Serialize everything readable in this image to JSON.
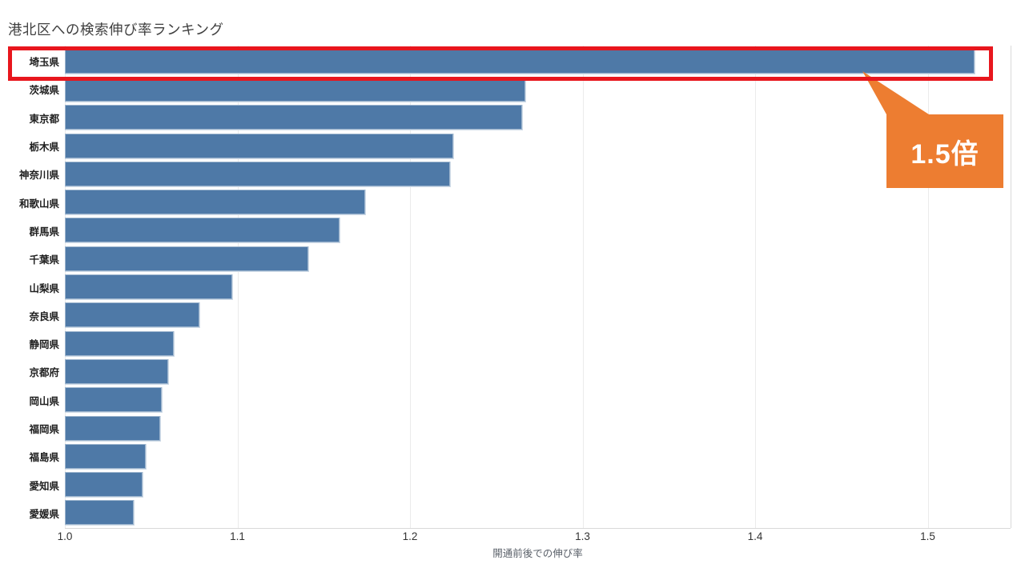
{
  "title": "港北区への検索伸び率ランキング",
  "chart_data": {
    "type": "bar",
    "orientation": "horizontal",
    "title": "港北区への検索伸び率ランキング",
    "xlabel": "開通前後での伸び率",
    "ylabel": "",
    "categories": [
      "埼玉県",
      "茨城県",
      "東京都",
      "栃木県",
      "神奈川県",
      "和歌山県",
      "群馬県",
      "千葉県",
      "山梨県",
      "奈良県",
      "静岡県",
      "京都府",
      "岡山県",
      "福岡県",
      "福島県",
      "愛知県",
      "愛媛県"
    ],
    "values": [
      1.527,
      1.267,
      1.265,
      1.225,
      1.223,
      1.174,
      1.159,
      1.141,
      1.097,
      1.078,
      1.063,
      1.06,
      1.056,
      1.055,
      1.047,
      1.045,
      1.04
    ],
    "x_ticks": [
      1.0,
      1.1,
      1.2,
      1.3,
      1.4,
      1.5
    ],
    "xlim": [
      1.0,
      1.548
    ],
    "grid": "vertical-light",
    "legend": "none"
  },
  "annotations": {
    "highlight_box_target": "埼玉県",
    "callout_label": "1.5倍"
  },
  "colors": {
    "bar_color": "#4e79a7",
    "grid_color": "#ebebeb",
    "axisline_color": "#d9d9d9",
    "title_color": "#404040",
    "catlabel_color": "#1f1f1f",
    "tick_color": "#333333",
    "xlabel_color": "#5a6069",
    "highlight_color": "#e8161d",
    "callout_color": "#ed7d31",
    "callout_text_color": "#ffffff"
  }
}
